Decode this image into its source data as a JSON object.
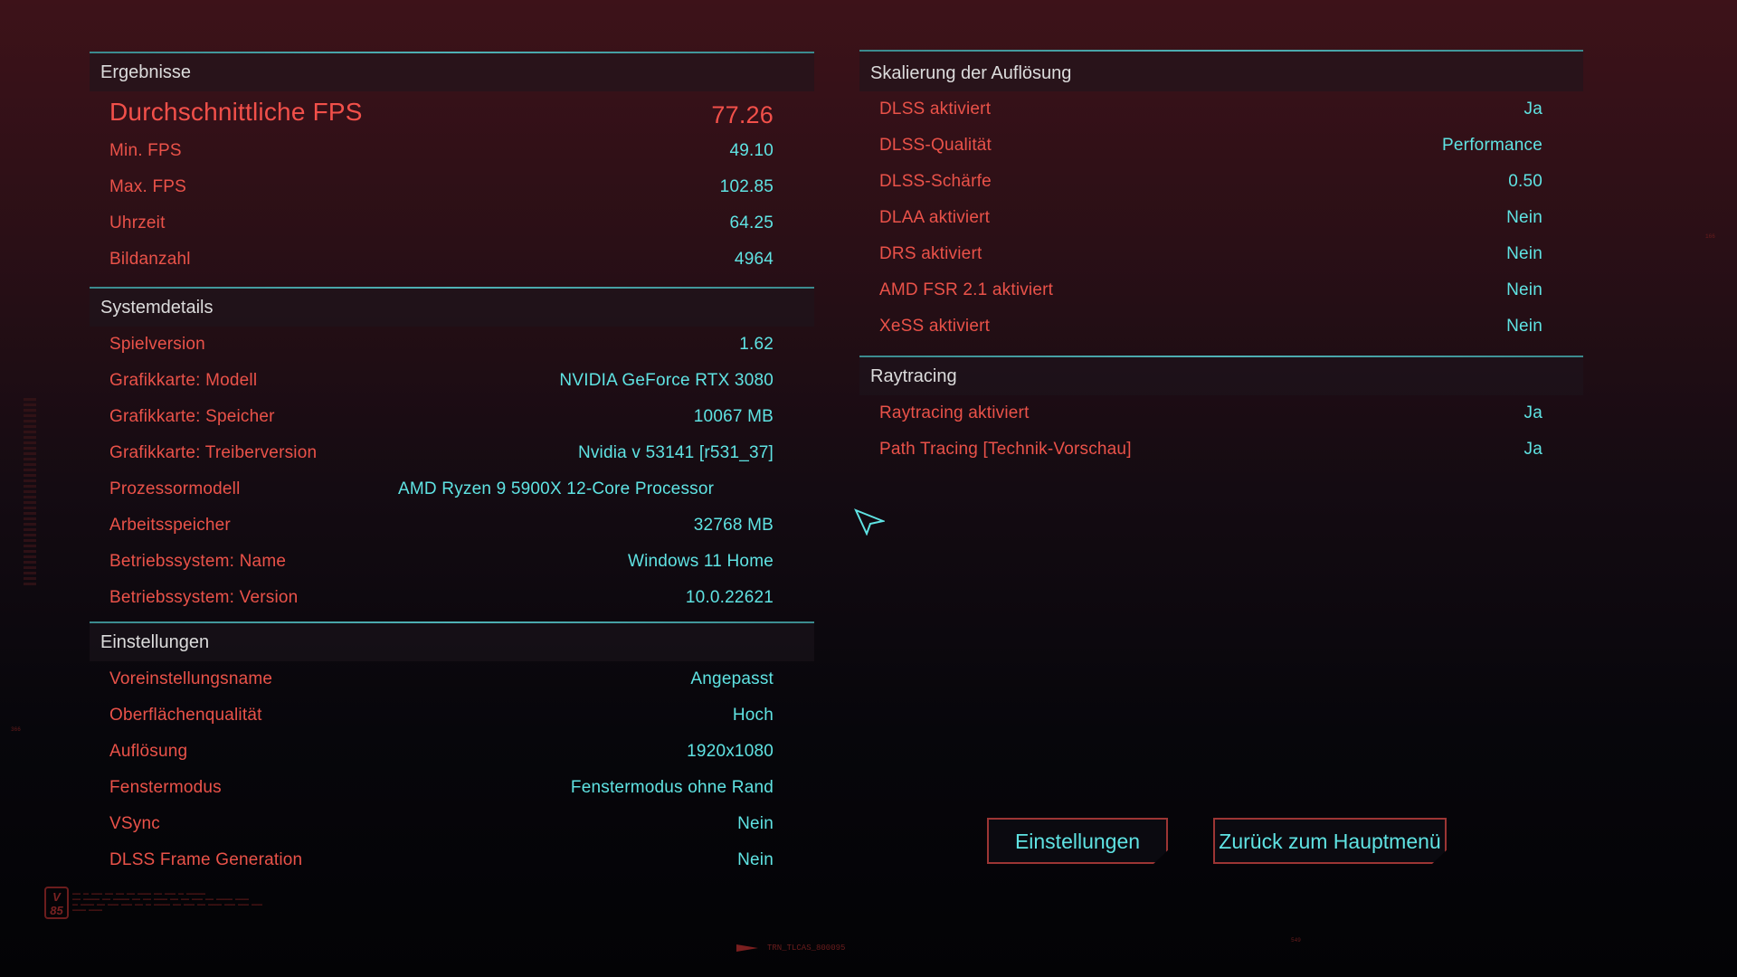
{
  "colors": {
    "label": "#ea5249",
    "value": "#5fe3e3",
    "accent_line": "#4fb2b6",
    "button_border": "#9c3534"
  },
  "results": {
    "title": "Ergebnisse",
    "headline": {
      "label": "Durchschnittliche FPS",
      "value": "77.26"
    },
    "rows": [
      {
        "label": "Min. FPS",
        "value": "49.10"
      },
      {
        "label": "Max. FPS",
        "value": "102.85"
      },
      {
        "label": "Uhrzeit",
        "value": "64.25"
      },
      {
        "label": "Bildanzahl",
        "value": "4964"
      }
    ]
  },
  "system": {
    "title": "Systemdetails",
    "rows": [
      {
        "label": "Spielversion",
        "value": "1.62"
      },
      {
        "label": "Grafikkarte: Modell",
        "value": "NVIDIA GeForce RTX 3080"
      },
      {
        "label": "Grafikkarte: Speicher",
        "value": "10067 MB"
      },
      {
        "label": "Grafikkarte: Treiberversion",
        "value": "Nvidia v 53141 [r531_37]"
      },
      {
        "label": "Prozessormodell",
        "value": "AMD Ryzen 9 5900X 12-Core Processor"
      },
      {
        "label": "Arbeitsspeicher",
        "value": "32768 MB"
      },
      {
        "label": "Betriebssystem: Name",
        "value": "Windows 11 Home"
      },
      {
        "label": "Betriebssystem: Version",
        "value": "10.0.22621"
      }
    ]
  },
  "settings": {
    "title": "Einstellungen",
    "rows": [
      {
        "label": "Voreinstellungsname",
        "value": "Angepasst"
      },
      {
        "label": "Oberflächenqualität",
        "value": "Hoch"
      },
      {
        "label": "Auflösung",
        "value": "1920x1080"
      },
      {
        "label": "Fenstermodus",
        "value": "Fenstermodus ohne Rand"
      },
      {
        "label": "VSync",
        "value": "Nein"
      },
      {
        "label": "DLSS Frame Generation",
        "value": "Nein"
      }
    ]
  },
  "scaling": {
    "title": "Skalierung der Auflösung",
    "rows": [
      {
        "label": "DLSS aktiviert",
        "value": "Ja"
      },
      {
        "label": "DLSS-Qualität",
        "value": "Performance"
      },
      {
        "label": "DLSS-Schärfe",
        "value": "0.50"
      },
      {
        "label": "DLAA aktiviert",
        "value": "Nein"
      },
      {
        "label": "DRS aktiviert",
        "value": "Nein"
      },
      {
        "label": "AMD FSR 2.1 aktiviert",
        "value": "Nein"
      },
      {
        "label": "XeSS aktiviert",
        "value": "Nein"
      }
    ]
  },
  "raytracing": {
    "title": "Raytracing",
    "rows": [
      {
        "label": "Raytracing aktiviert",
        "value": "Ja"
      },
      {
        "label": "Path Tracing [Technik-Vorschau]",
        "value": "Ja"
      }
    ]
  },
  "buttons": {
    "settings": "Einstellungen",
    "main_menu": "Zurück zum Hauptmenü"
  },
  "footer": {
    "badge": "V 85",
    "code": "TRN_TLCAS_800095",
    "tag_left": "366",
    "tag_right": "549",
    "tag_top_right": "166"
  },
  "icons": {
    "cursor": "pointer-arrow-icon",
    "code_marker": "triangle-flag-icon"
  }
}
